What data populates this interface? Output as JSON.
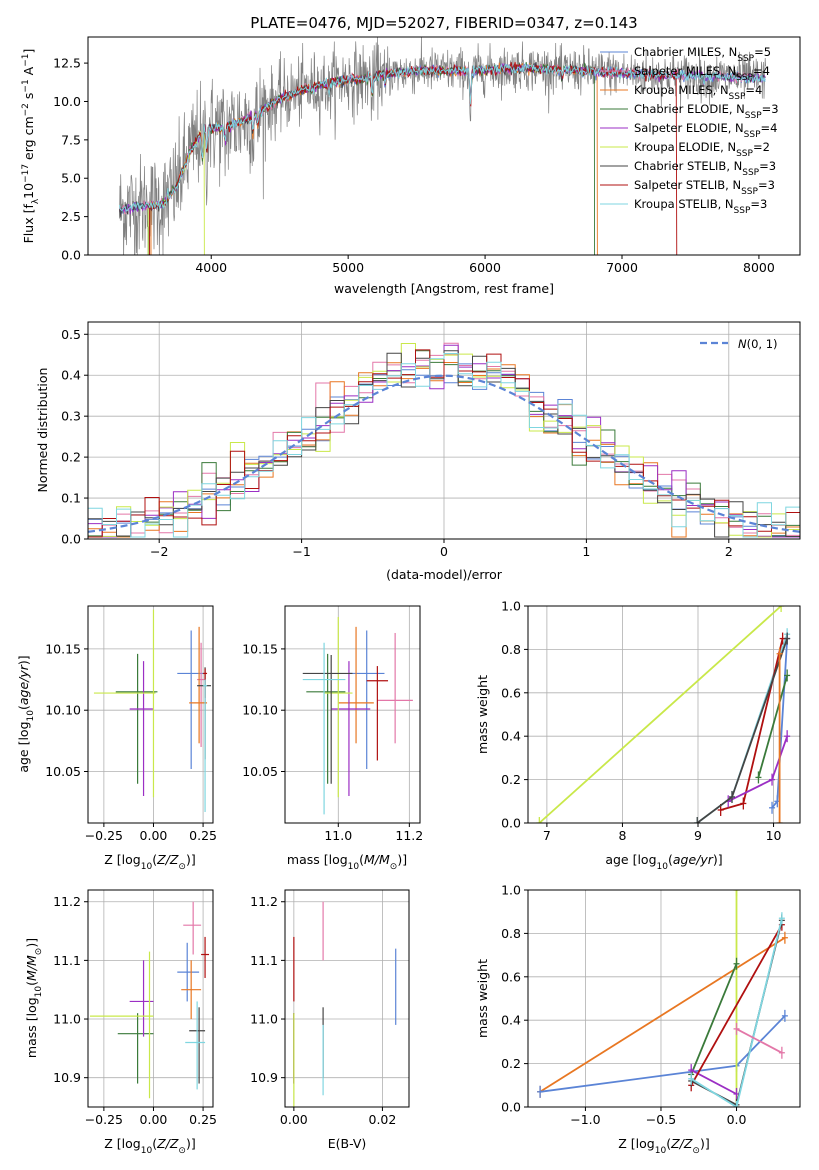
{
  "title": "PLATE=0476, MJD=52027, FIBERID=0347, z=0.143",
  "colors": {
    "Chabrier MILES": "#5b84d6",
    "Salpeter MILES": "#e377a8",
    "Kroupa MILES": "#e87722",
    "Chabrier ELODIE": "#3a7a3a",
    "Salpeter ELODIE": "#9b2fc4",
    "Kroupa ELODIE": "#c9e84a",
    "Chabrier STELIB": "#454545",
    "Salpeter STELIB": "#b01010",
    "Kroupa STELIB": "#7fd6e0",
    "data": "#808080",
    "normal": "#5b84d6",
    "grid": "#b0b0b0"
  },
  "models": [
    {
      "name": "Chabrier MILES",
      "nssp": 5
    },
    {
      "name": "Salpeter MILES",
      "nssp": 4
    },
    {
      "name": "Kroupa MILES",
      "nssp": 4
    },
    {
      "name": "Chabrier ELODIE",
      "nssp": 3
    },
    {
      "name": "Salpeter ELODIE",
      "nssp": 4
    },
    {
      "name": "Kroupa ELODIE",
      "nssp": 2
    },
    {
      "name": "Chabrier STELIB",
      "nssp": 3
    },
    {
      "name": "Salpeter STELIB",
      "nssp": 3
    },
    {
      "name": "Kroupa STELIB",
      "nssp": 3
    }
  ],
  "legend_labels": [
    "Chabrier MILES, N_SSP=5",
    "Salpeter MILES, N_SSP=4",
    "Kroupa MILES, N_SSP=4",
    "Chabrier ELODIE, N_SSP=3",
    "Salpeter ELODIE, N_SSP=4",
    "Kroupa ELODIE, N_SSP=2",
    "Chabrier STELIB, N_SSP=3",
    "Salpeter STELIB, N_SSP=3",
    "Kroupa STELIB, N_SSP=3"
  ],
  "chart_data": [
    {
      "id": "spectrum",
      "type": "line",
      "xlabel": "wavelength [Angstrom, rest frame]",
      "ylabel": "Flux [f_λ 10^-17 erg cm^-2 s^-1 A^-1]",
      "xlim": [
        3100,
        8300
      ],
      "ylim": [
        0,
        14.2
      ],
      "xticks": [
        4000,
        5000,
        6000,
        7000,
        8000
      ],
      "yticks": [
        0.0,
        2.5,
        5.0,
        7.5,
        10.0,
        12.5
      ],
      "grid": false,
      "legend_position": "top-right",
      "continuum": [
        [
          3330,
          2.9
        ],
        [
          3500,
          3.2
        ],
        [
          3650,
          3.3
        ],
        [
          3750,
          4.5
        ],
        [
          3850,
          6.8
        ],
        [
          3950,
          8.3
        ],
        [
          4100,
          8.3
        ],
        [
          4300,
          9.0
        ],
        [
          4500,
          10.2
        ],
        [
          4700,
          10.8
        ],
        [
          4900,
          11.3
        ],
        [
          5100,
          11.5
        ],
        [
          5300,
          11.8
        ],
        [
          5500,
          12.0
        ],
        [
          5700,
          12.0
        ],
        [
          5900,
          12.0
        ],
        [
          6100,
          12.1
        ],
        [
          6300,
          12.2
        ],
        [
          6500,
          12.1
        ],
        [
          6700,
          12.0
        ],
        [
          6900,
          11.9
        ],
        [
          7100,
          11.8
        ],
        [
          7300,
          11.7
        ],
        [
          7500,
          11.7
        ],
        [
          7700,
          11.6
        ],
        [
          8050,
          11.5
        ]
      ],
      "model_end_drops": {
        "Kroupa ELODIE": [
          3540,
          3950
        ],
        "Salpeter STELIB": [
          3550,
          7400
        ],
        "Kroupa MILES": [
          3560,
          6820
        ],
        "Chabrier ELODIE": [
          3540,
          6800
        ]
      }
    },
    {
      "id": "residuals",
      "type": "histogram",
      "xlabel": "(data-model)/error",
      "ylabel": "Normed distribution",
      "xlim": [
        -2.5,
        2.5
      ],
      "ylim": [
        0,
        0.53
      ],
      "xticks": [
        -2,
        -1,
        0,
        1,
        2
      ],
      "yticks": [
        0.0,
        0.1,
        0.2,
        0.3,
        0.4,
        0.5
      ],
      "grid": true,
      "legend_position": "top-right",
      "legend": "N(0,1)",
      "bin_width": 0.1
    },
    {
      "id": "age-vs-Z",
      "type": "scatter",
      "xlabel": "Z [log10(Z/Z_sun)]",
      "ylabel": "age [log10(age/yr)]",
      "xlim": [
        -0.33,
        0.3
      ],
      "ylim": [
        10.008,
        10.185
      ],
      "xticks": [
        -0.25,
        0.0,
        0.25
      ],
      "yticks": [
        10.05,
        10.1,
        10.15
      ],
      "grid": true,
      "points": [
        {
          "model": "Chabrier MILES",
          "x": 0.19,
          "y": 10.13,
          "xerr": [
            0.07,
            0.06
          ],
          "yerr": [
            0.078,
            0.035
          ]
        },
        {
          "model": "Salpeter MILES",
          "x": 0.24,
          "y": 10.125,
          "xerr": [
            0.02,
            0.02
          ],
          "yerr": [
            0.055,
            0.03
          ]
        },
        {
          "model": "Kroupa MILES",
          "x": 0.23,
          "y": 10.106,
          "xerr": [
            0.05,
            0.04
          ],
          "yerr": [
            0.033,
            0.062
          ]
        },
        {
          "model": "Chabrier ELODIE",
          "x": -0.08,
          "y": 10.115,
          "xerr": [
            0.11,
            0.1
          ],
          "yerr": [
            0.075,
            0.031
          ]
        },
        {
          "model": "Salpeter ELODIE",
          "x": -0.05,
          "y": 10.101,
          "xerr": [
            0.07,
            0.05
          ],
          "yerr": [
            0.071,
            0.039
          ]
        },
        {
          "model": "Kroupa ELODIE",
          "x": 0.0,
          "y": 10.114,
          "xerr": [
            0.3,
            0.01
          ],
          "yerr": [
            0.085,
            0.068
          ]
        },
        {
          "model": "Chabrier STELIB",
          "x": 0.26,
          "y": 10.12,
          "xerr": [
            0.04,
            0.03
          ],
          "yerr": [
            0.06,
            0.015
          ]
        },
        {
          "model": "Salpeter STELIB",
          "x": 0.26,
          "y": 10.13,
          "xerr": [
            0.01,
            0.01
          ],
          "yerr": [
            0.02,
            0.004
          ]
        },
        {
          "model": "Kroupa STELIB",
          "x": 0.26,
          "y": 10.12,
          "xerr": [
            0.01,
            0.01
          ],
          "yerr": [
            0.103,
            0.005
          ]
        }
      ]
    },
    {
      "id": "age-vs-mass",
      "type": "scatter",
      "xlabel": "mass [log10(M/M_sun)]",
      "ylabel": "",
      "xlim": [
        10.85,
        11.23
      ],
      "ylim": [
        10.008,
        10.185
      ],
      "xticks": [
        11.0,
        11.2
      ],
      "yticks": [
        10.05,
        10.1,
        10.15
      ],
      "grid": true,
      "points": [
        {
          "model": "Chabrier MILES",
          "x": 11.08,
          "y": 10.13,
          "xerr": [
            0.05,
            0.05
          ],
          "yerr": [
            0.078,
            0.035
          ]
        },
        {
          "model": "Salpeter MILES",
          "x": 11.16,
          "y": 10.108,
          "xerr": [
            0.05,
            0.05
          ],
          "yerr": [
            0.035,
            0.055
          ]
        },
        {
          "model": "Kroupa MILES",
          "x": 11.05,
          "y": 10.106,
          "xerr": [
            0.05,
            0.05
          ],
          "yerr": [
            0.033,
            0.062
          ]
        },
        {
          "model": "Chabrier ELODIE",
          "x": 10.97,
          "y": 10.115,
          "xerr": [
            0.06,
            0.05
          ],
          "yerr": [
            0.075,
            0.031
          ]
        },
        {
          "model": "Salpeter ELODIE",
          "x": 11.03,
          "y": 10.101,
          "xerr": [
            0.05,
            0.06
          ],
          "yerr": [
            0.071,
            0.039
          ]
        },
        {
          "model": "Kroupa ELODIE",
          "x": 11.0,
          "y": 10.114,
          "xerr": [
            0.04,
            0.04
          ],
          "yerr": [
            0.085,
            0.062
          ]
        },
        {
          "model": "Chabrier STELIB",
          "x": 10.98,
          "y": 10.13,
          "xerr": [
            0.08,
            0.06
          ],
          "yerr": [
            0.09,
            0.015
          ]
        },
        {
          "model": "Salpeter STELIB",
          "x": 11.11,
          "y": 10.124,
          "xerr": [
            0.03,
            0.03
          ],
          "yerr": [
            0.065,
            0.012
          ]
        },
        {
          "model": "Kroupa STELIB",
          "x": 10.96,
          "y": 10.125,
          "xerr": [
            0.06,
            0.06
          ],
          "yerr": [
            0.11,
            0.03
          ]
        }
      ]
    },
    {
      "id": "massweight-vs-age",
      "type": "line",
      "xlabel": "age [log10(age/yr)]",
      "ylabel": "mass weight",
      "xlim": [
        6.75,
        10.35
      ],
      "ylim": [
        0,
        1.0
      ],
      "xticks": [
        7,
        8,
        9,
        10
      ],
      "yticks": [
        0.0,
        0.2,
        0.4,
        0.6,
        0.8,
        1.0
      ],
      "grid": true,
      "series": [
        {
          "model": "Kroupa ELODIE",
          "x": [
            6.9,
            10.1
          ],
          "y": [
            0.0,
            1.0
          ]
        },
        {
          "model": "Kroupa STELIB",
          "x": [
            8.99,
            9.45,
            10.18
          ],
          "y": [
            0.0,
            0.12,
            0.87
          ]
        },
        {
          "model": "Chabrier MILES",
          "x": [
            9.98,
            10.05,
            10.18
          ],
          "y": [
            0.07,
            0.1,
            0.85
          ]
        },
        {
          "model": "Salpeter STELIB",
          "x": [
            9.3,
            9.6,
            10.12
          ],
          "y": [
            0.06,
            0.09,
            0.85
          ]
        },
        {
          "model": "Salpeter ELODIE",
          "x": [
            9.4,
            9.98,
            10.18
          ],
          "y": [
            0.1,
            0.2,
            0.4
          ]
        },
        {
          "model": "Chabrier ELODIE",
          "x": [
            9.8,
            10.18
          ],
          "y": [
            0.21,
            0.68
          ]
        },
        {
          "model": "Chabrier STELIB",
          "x": [
            8.99,
            9.45,
            10.18
          ],
          "y": [
            0.0,
            0.12,
            0.85
          ]
        },
        {
          "model": "Kroupa MILES",
          "x": [
            10.08,
            10.08
          ],
          "y": [
            0.0,
            0.78
          ]
        }
      ]
    },
    {
      "id": "mass-vs-Z",
      "type": "scatter",
      "xlabel": "Z [log10(Z/Z_sun)]",
      "ylabel": "mass [log10(M/M_sun)]",
      "xlim": [
        -0.33,
        0.3
      ],
      "ylim": [
        10.85,
        11.22
      ],
      "xticks": [
        -0.25,
        0.0,
        0.25
      ],
      "yticks": [
        10.9,
        11.0,
        11.1,
        11.2
      ],
      "grid": true,
      "points": [
        {
          "model": "Chabrier MILES",
          "x": 0.17,
          "y": 11.08,
          "xerr": [
            0.05,
            0.06
          ],
          "yerr": [
            0.05,
            0.05
          ]
        },
        {
          "model": "Salpeter MILES",
          "x": 0.2,
          "y": 11.16,
          "xerr": [
            0.05,
            0.04
          ],
          "yerr": [
            0.05,
            0.04
          ]
        },
        {
          "model": "Kroupa MILES",
          "x": 0.19,
          "y": 11.05,
          "xerr": [
            0.05,
            0.05
          ],
          "yerr": [
            0.05,
            0.05
          ]
        },
        {
          "model": "Chabrier ELODIE",
          "x": -0.08,
          "y": 10.975,
          "xerr": [
            0.1,
            0.08
          ],
          "yerr": [
            0.085,
            0.035
          ]
        },
        {
          "model": "Salpeter ELODIE",
          "x": -0.05,
          "y": 11.03,
          "xerr": [
            0.07,
            0.05
          ],
          "yerr": [
            0.06,
            0.07
          ]
        },
        {
          "model": "Kroupa ELODIE",
          "x": -0.02,
          "y": 11.005,
          "xerr": [
            0.3,
            0.02
          ],
          "yerr": [
            0.14,
            0.11
          ]
        },
        {
          "model": "Chabrier STELIB",
          "x": 0.23,
          "y": 10.98,
          "xerr": [
            0.05,
            0.03
          ],
          "yerr": [
            0.09,
            0.04
          ]
        },
        {
          "model": "Salpeter STELIB",
          "x": 0.26,
          "y": 11.11,
          "xerr": [
            0.02,
            0.02
          ],
          "yerr": [
            0.04,
            0.03
          ]
        },
        {
          "model": "Kroupa STELIB",
          "x": 0.22,
          "y": 10.96,
          "xerr": [
            0.06,
            0.04
          ],
          "yerr": [
            0.08,
            0.07
          ]
        }
      ]
    },
    {
      "id": "mass-vs-EBV",
      "type": "scatter",
      "xlabel": "E(B-V)",
      "ylabel": "",
      "xlim": [
        -0.002,
        0.026
      ],
      "ylim": [
        10.85,
        11.22
      ],
      "xticks": [
        0.0,
        0.02
      ],
      "yticks": [
        10.9,
        11.0,
        11.1,
        11.2
      ],
      "grid": true,
      "points": [
        {
          "model": "Chabrier MILES",
          "x": 0.023,
          "y": 11.06,
          "xerr": [
            0,
            0
          ],
          "yerr": [
            0.07,
            0.06
          ]
        },
        {
          "model": "Salpeter MILES",
          "x": 0.0066,
          "y": 11.15,
          "xerr": [
            0,
            0
          ],
          "yerr": [
            0.05,
            0.05
          ]
        },
        {
          "model": "Kroupa MILES",
          "x": 0.0,
          "y": 10.95,
          "xerr": [
            0,
            0
          ],
          "yerr": [
            0.06,
            0.06
          ]
        },
        {
          "model": "Chabrier ELODIE",
          "x": 0.0,
          "y": 10.95,
          "xerr": [
            0,
            0
          ],
          "yerr": [
            0.06,
            0.06
          ]
        },
        {
          "model": "Salpeter ELODIE",
          "x": 0.0,
          "y": 10.95,
          "xerr": [
            0,
            0
          ],
          "yerr": [
            0.06,
            0.06
          ]
        },
        {
          "model": "Kroupa ELODIE",
          "x": 0.0,
          "y": 10.95,
          "xerr": [
            0,
            0
          ],
          "yerr": [
            0.1,
            0.06
          ]
        },
        {
          "model": "Chabrier STELIB",
          "x": 0.0066,
          "y": 10.98,
          "xerr": [
            0,
            0
          ],
          "yerr": [
            0.08,
            0.04
          ]
        },
        {
          "model": "Salpeter STELIB",
          "x": 0.0,
          "y": 11.09,
          "xerr": [
            0,
            0
          ],
          "yerr": [
            0.06,
            0.05
          ]
        },
        {
          "model": "Kroupa STELIB",
          "x": 0.0066,
          "y": 10.93,
          "xerr": [
            0,
            0
          ],
          "yerr": [
            0.06,
            0.06
          ]
        }
      ]
    },
    {
      "id": "massweight-vs-Z",
      "type": "line",
      "xlabel": "Z [log10(Z/Z_sun)]",
      "ylabel": "mass weight",
      "xlim": [
        -1.38,
        0.42
      ],
      "ylim": [
        0,
        1.0
      ],
      "xticks": [
        -1.0,
        -0.5,
        0.0
      ],
      "yticks": [
        0.0,
        0.2,
        0.4,
        0.6,
        0.8,
        1.0
      ],
      "grid": true,
      "series": [
        {
          "model": "Kroupa MILES",
          "x": [
            -1.3,
            0.32
          ],
          "y": [
            0.07,
            0.78
          ]
        },
        {
          "model": "Chabrier MILES",
          "x": [
            -1.3,
            0.0,
            0.32
          ],
          "y": [
            0.07,
            0.19,
            0.42
          ]
        },
        {
          "model": "Kroupa ELODIE",
          "x": [
            0.0,
            0.0
          ],
          "y": [
            0.0,
            1.0
          ]
        },
        {
          "model": "Chabrier ELODIE",
          "x": [
            -0.3,
            0.0
          ],
          "y": [
            0.15,
            0.66
          ]
        },
        {
          "model": "Salpeter ELODIE",
          "x": [
            -0.3,
            0.0
          ],
          "y": [
            0.17,
            0.06
          ]
        },
        {
          "model": "Salpeter STELIB",
          "x": [
            -0.3,
            0.3
          ],
          "y": [
            0.1,
            0.84
          ]
        },
        {
          "model": "Chabrier STELIB",
          "x": [
            -0.3,
            0.0,
            0.3
          ],
          "y": [
            0.12,
            0.01,
            0.86
          ]
        },
        {
          "model": "Kroupa STELIB",
          "x": [
            -0.3,
            0.0,
            0.3
          ],
          "y": [
            0.13,
            0.0,
            0.87
          ]
        },
        {
          "model": "Salpeter MILES",
          "x": [
            0.0,
            0.3
          ],
          "y": [
            0.36,
            0.25
          ]
        }
      ]
    }
  ]
}
